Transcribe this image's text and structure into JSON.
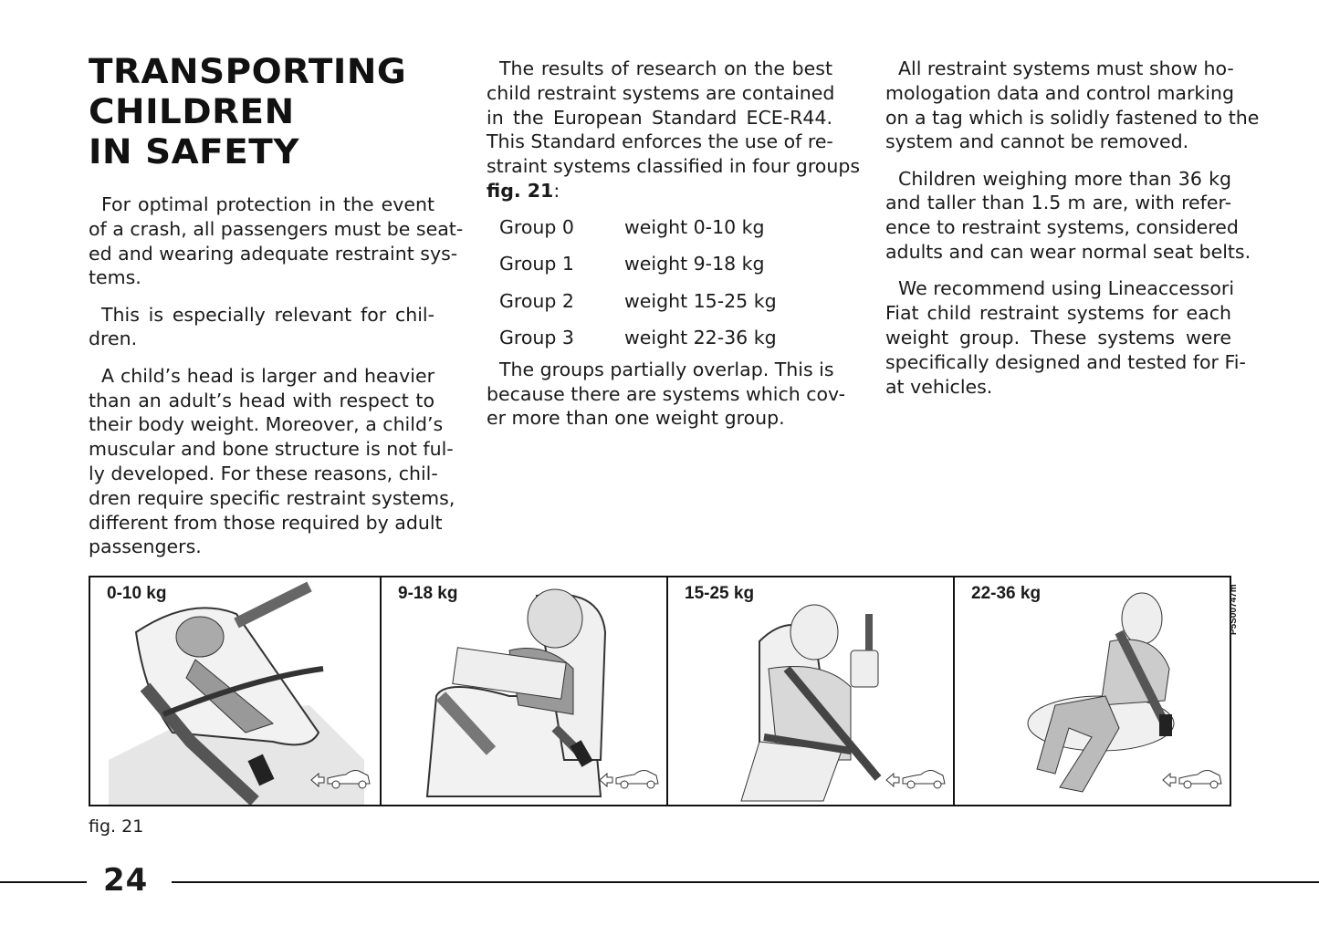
{
  "heading": [
    "TRANSPORTING",
    "CHILDREN",
    "IN SAFETY"
  ],
  "column1": [
    [
      "For optimal protection in the event",
      "of a crash, all passengers must be seat-",
      "ed and wearing adequate restraint sys-",
      "tems."
    ],
    [
      "This is especially relevant for chil-",
      "dren."
    ],
    [
      "A child’s head is larger and heavier",
      "than an adult’s head with respect to",
      "their body weight. Moreover, a child’s",
      "muscular and bone structure is not ful-",
      "ly developed. For these reasons, chil-",
      "dren require specific restraint systems,",
      "different from those required by adult",
      "passengers."
    ]
  ],
  "column2": {
    "intro": [
      "The results of research on the best",
      "child restraint systems are contained",
      "in the European Standard ECE-R44.",
      "This Standard enforces the use of re-",
      "straint systems classified in four groups"
    ],
    "fig_ref": "fig. 21",
    "fig_ref_suffix": ":",
    "groups": [
      {
        "group": "Group 0",
        "weight": "weight 0-10 kg"
      },
      {
        "group": "Group 1",
        "weight": "weight 9-18 kg"
      },
      {
        "group": "Group 2",
        "weight": "weight 15-25 kg"
      },
      {
        "group": "Group 3",
        "weight": "weight 22-36 kg"
      }
    ],
    "outro": [
      "The groups partially overlap. This is",
      "because there are systems which cov-",
      "er more than one weight group."
    ]
  },
  "column3": [
    [
      "All restraint systems must show ho-",
      "mologation data and control marking",
      "on a tag which is solidly fastened to the",
      "system and cannot be removed."
    ],
    [
      "Children weighing more than 36 kg",
      "and taller than 1.5 m are, with refer-",
      "ence to restraint systems, considered",
      "adults and can wear normal seat belts."
    ],
    [
      "We recommend using Lineaccessori",
      "Fiat child restraint systems for each",
      "weight group. These systems were",
      "specifically designed and tested for Fi-",
      "at vehicles."
    ]
  ],
  "figure": {
    "panels": [
      {
        "label": "0-10 kg",
        "icon": "rear-facing-infant-seat"
      },
      {
        "label": "9-18 kg",
        "icon": "child-seat-with-shield"
      },
      {
        "label": "15-25 kg",
        "icon": "booster-seat-with-backrest"
      },
      {
        "label": "22-36 kg",
        "icon": "booster-cushion"
      }
    ],
    "direction_icon": "arrow-car-icon",
    "code": "P5S00747m",
    "caption": "fig. 21"
  },
  "page_number": "24"
}
